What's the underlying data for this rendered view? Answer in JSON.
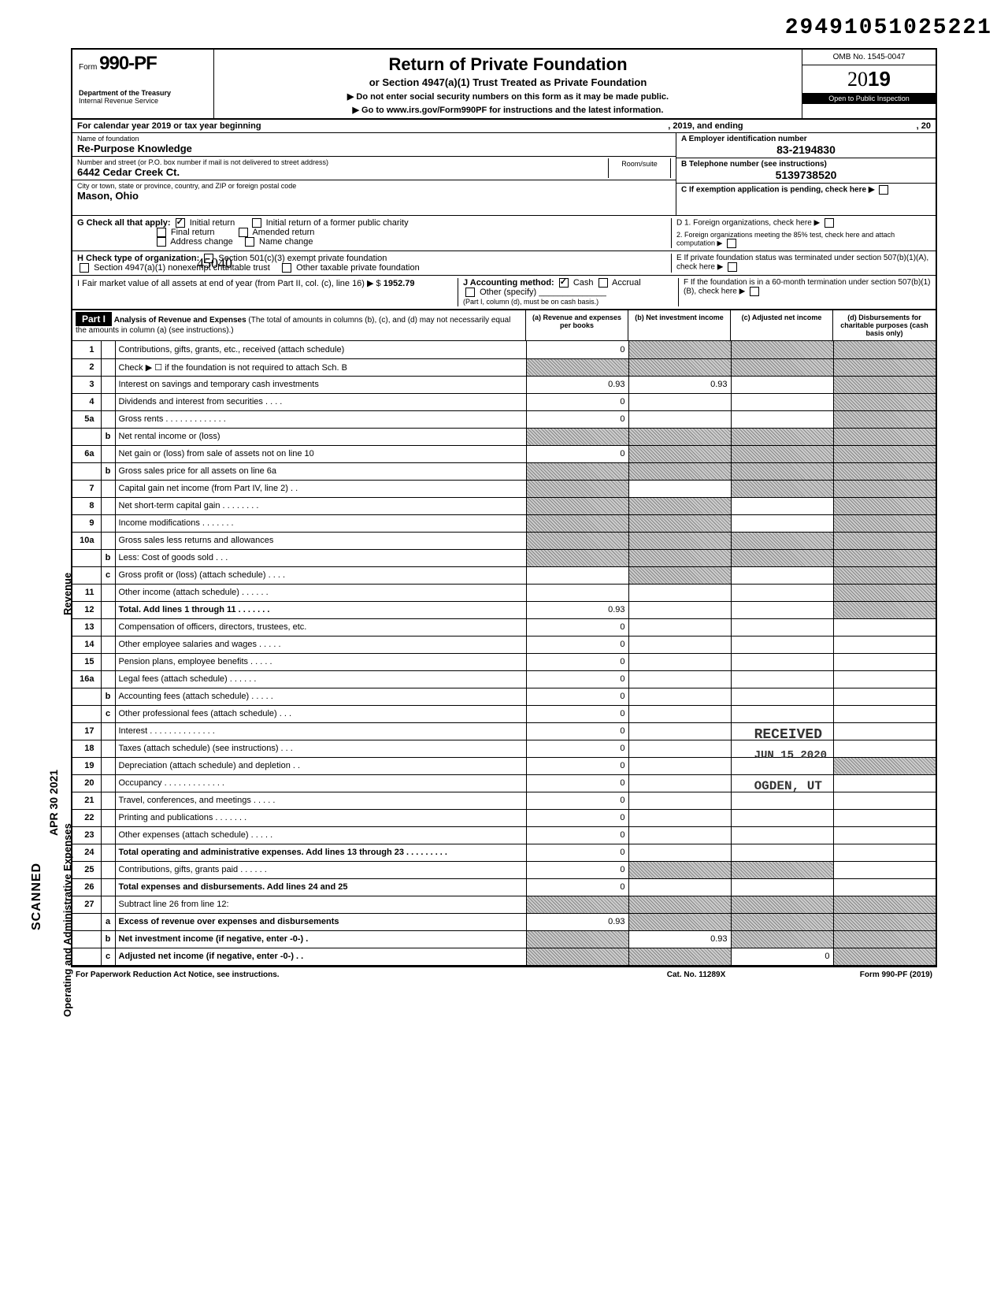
{
  "doc_number": "29491051025221",
  "form": {
    "prefix": "Form",
    "number": "990-PF",
    "dept": "Department of the Treasury",
    "irs": "Internal Revenue Service"
  },
  "title": {
    "main": "Return of Private Foundation",
    "sub": "or Section 4947(a)(1) Trust Treated as Private Foundation",
    "warn": "▶ Do not enter social security numbers on this form as it may be made public.",
    "goto": "▶ Go to www.irs.gov/Form990PF for instructions and the latest information."
  },
  "omb": {
    "label": "OMB No. 1545-0047",
    "year_prefix": "20",
    "year_suffix": "19",
    "open": "Open to Public Inspection"
  },
  "cal_year": {
    "prefix": "For calendar year 2019 or tax year beginning",
    "mid": ", 2019, and ending",
    "suffix": ", 20"
  },
  "foundation": {
    "name_label": "Name of foundation",
    "name": "Re-Purpose Knowledge",
    "addr_label": "Number and street (or P.O. box number if mail is not delivered to street address)",
    "addr": "6442 Cedar Creek Ct.",
    "city_label": "City or town, state or province, country, and ZIP or foreign postal code",
    "city": "Mason, Ohio",
    "handwritten_zip": "45040",
    "room_label": "Room/suite"
  },
  "boxA": {
    "label": "A  Employer identification number",
    "value": "83-2194830"
  },
  "boxB": {
    "label": "B  Telephone number (see instructions)",
    "value": "5139738520"
  },
  "boxC": {
    "label": "C  If exemption application is pending, check here ▶"
  },
  "boxD": {
    "d1": "D  1. Foreign organizations, check here",
    "d2": "2. Foreign organizations meeting the 85% test, check here and attach computation"
  },
  "boxE": {
    "label": "E  If private foundation status was terminated under section 507(b)(1)(A), check here"
  },
  "boxF": {
    "label": "F  If the foundation is in a 60-month termination under section 507(b)(1)(B), check here"
  },
  "sectionG": {
    "label": "G  Check all that apply:",
    "opts": {
      "initial": "Initial return",
      "initial_former": "Initial return of a former public charity",
      "final": "Final return",
      "amended": "Amended return",
      "addr_change": "Address change",
      "name_change": "Name change"
    },
    "initial_checked": true
  },
  "sectionH": {
    "label": "H  Check type of organization:",
    "opt1": "Section 501(c)(3) exempt private foundation",
    "opt2": "Section 4947(a)(1) nonexempt charitable trust",
    "opt3": "Other taxable private foundation"
  },
  "sectionI": {
    "label": "I   Fair market value of all assets at end of year (from Part II, col. (c), line 16) ▶ $",
    "value": "1952.79",
    "j_label": "J  Accounting method:",
    "j_cash": "Cash",
    "j_accrual": "Accrual",
    "j_other": "Other (specify)",
    "j_note": "(Part I, column (d), must be on cash basis.)",
    "cash_checked": true
  },
  "part1": {
    "tag": "Part I",
    "title": "Analysis of Revenue and Expenses",
    "note": "(The total of amounts in columns (b), (c), and (d) may not necessarily equal the amounts in column (a) (see instructions).)",
    "col_a": "(a) Revenue and expenses per books",
    "col_b": "(b) Net investment income",
    "col_c": "(c) Adjusted net income",
    "col_d": "(d) Disbursements for charitable purposes (cash basis only)"
  },
  "side": {
    "revenue": "Revenue",
    "ops": "Operating and Administrative Expenses",
    "scanned": "SCANNED",
    "date": "APR 30 2021"
  },
  "stamp": {
    "received": "RECEIVED",
    "date": "JUN 15 2020",
    "loc": "OGDEN, UT"
  },
  "lines": [
    {
      "n": "1",
      "sub": "",
      "desc": "Contributions, gifts, grants, etc., received (attach schedule)",
      "bold": false,
      "a": "0",
      "b": "shaded",
      "c": "shaded",
      "d": "shaded"
    },
    {
      "n": "2",
      "sub": "",
      "desc": "Check ▶ ☐ if the foundation is not required to attach Sch. B",
      "bold": false,
      "a": "shaded",
      "b": "shaded",
      "c": "shaded",
      "d": "shaded"
    },
    {
      "n": "3",
      "sub": "",
      "desc": "Interest on savings and temporary cash investments",
      "bold": false,
      "a": "0.93",
      "b": "0.93",
      "c": "",
      "d": "shaded"
    },
    {
      "n": "4",
      "sub": "",
      "desc": "Dividends and interest from securities . . . .",
      "bold": false,
      "a": "0",
      "b": "",
      "c": "",
      "d": "shaded"
    },
    {
      "n": "5a",
      "sub": "",
      "desc": "Gross rents . . . . . . . . . . . . .",
      "bold": false,
      "a": "0",
      "b": "",
      "c": "",
      "d": "shaded"
    },
    {
      "n": "",
      "sub": "b",
      "desc": "Net rental income or (loss)",
      "bold": false,
      "a": "shaded",
      "b": "shaded",
      "c": "shaded",
      "d": "shaded"
    },
    {
      "n": "6a",
      "sub": "",
      "desc": "Net gain or (loss) from sale of assets not on line 10",
      "bold": false,
      "a": "0",
      "b": "shaded",
      "c": "shaded",
      "d": "shaded"
    },
    {
      "n": "",
      "sub": "b",
      "desc": "Gross sales price for all assets on line 6a",
      "bold": false,
      "a": "shaded",
      "b": "shaded",
      "c": "shaded",
      "d": "shaded"
    },
    {
      "n": "7",
      "sub": "",
      "desc": "Capital gain net income (from Part IV, line 2) . .",
      "bold": false,
      "a": "shaded",
      "b": "",
      "c": "shaded",
      "d": "shaded"
    },
    {
      "n": "8",
      "sub": "",
      "desc": "Net short-term capital gain . . . . . . . .",
      "bold": false,
      "a": "shaded",
      "b": "shaded",
      "c": "",
      "d": "shaded"
    },
    {
      "n": "9",
      "sub": "",
      "desc": "Income modifications . . . . . . .",
      "bold": false,
      "a": "shaded",
      "b": "shaded",
      "c": "",
      "d": "shaded"
    },
    {
      "n": "10a",
      "sub": "",
      "desc": "Gross sales less returns and allowances",
      "bold": false,
      "a": "shaded",
      "b": "shaded",
      "c": "shaded",
      "d": "shaded"
    },
    {
      "n": "",
      "sub": "b",
      "desc": "Less: Cost of goods sold . . .",
      "bold": false,
      "a": "shaded",
      "b": "shaded",
      "c": "shaded",
      "d": "shaded"
    },
    {
      "n": "",
      "sub": "c",
      "desc": "Gross profit or (loss) (attach schedule) . . . .",
      "bold": false,
      "a": "",
      "b": "shaded",
      "c": "",
      "d": "shaded"
    },
    {
      "n": "11",
      "sub": "",
      "desc": "Other income (attach schedule) . . . . . .",
      "bold": false,
      "a": "",
      "b": "",
      "c": "",
      "d": "shaded"
    },
    {
      "n": "12",
      "sub": "",
      "desc": "Total. Add lines 1 through 11 . . . . . . .",
      "bold": true,
      "a": "0.93",
      "b": "",
      "c": "",
      "d": "shaded"
    },
    {
      "n": "13",
      "sub": "",
      "desc": "Compensation of officers, directors, trustees, etc.",
      "bold": false,
      "a": "0",
      "b": "",
      "c": "",
      "d": ""
    },
    {
      "n": "14",
      "sub": "",
      "desc": "Other employee salaries and wages . . . . .",
      "bold": false,
      "a": "0",
      "b": "",
      "c": "",
      "d": ""
    },
    {
      "n": "15",
      "sub": "",
      "desc": "Pension plans, employee benefits . . . . .",
      "bold": false,
      "a": "0",
      "b": "",
      "c": "",
      "d": ""
    },
    {
      "n": "16a",
      "sub": "",
      "desc": "Legal fees (attach schedule) . . . . . .",
      "bold": false,
      "a": "0",
      "b": "",
      "c": "",
      "d": ""
    },
    {
      "n": "",
      "sub": "b",
      "desc": "Accounting fees (attach schedule) . . . . .",
      "bold": false,
      "a": "0",
      "b": "",
      "c": "",
      "d": ""
    },
    {
      "n": "",
      "sub": "c",
      "desc": "Other professional fees (attach schedule) . . .",
      "bold": false,
      "a": "0",
      "b": "",
      "c": "",
      "d": ""
    },
    {
      "n": "17",
      "sub": "",
      "desc": "Interest . . . . . . . . . . . . . .",
      "bold": false,
      "a": "0",
      "b": "",
      "c": "",
      "d": ""
    },
    {
      "n": "18",
      "sub": "",
      "desc": "Taxes (attach schedule) (see instructions) . . .",
      "bold": false,
      "a": "0",
      "b": "",
      "c": "",
      "d": ""
    },
    {
      "n": "19",
      "sub": "",
      "desc": "Depreciation (attach schedule) and depletion . .",
      "bold": false,
      "a": "0",
      "b": "",
      "c": "",
      "d": "shaded"
    },
    {
      "n": "20",
      "sub": "",
      "desc": "Occupancy . . . . . . . . . . . . .",
      "bold": false,
      "a": "0",
      "b": "",
      "c": "",
      "d": ""
    },
    {
      "n": "21",
      "sub": "",
      "desc": "Travel, conferences, and meetings . . . . .",
      "bold": false,
      "a": "0",
      "b": "",
      "c": "",
      "d": ""
    },
    {
      "n": "22",
      "sub": "",
      "desc": "Printing and publications . . . . . . .",
      "bold": false,
      "a": "0",
      "b": "",
      "c": "",
      "d": ""
    },
    {
      "n": "23",
      "sub": "",
      "desc": "Other expenses (attach schedule) . . . . .",
      "bold": false,
      "a": "0",
      "b": "",
      "c": "",
      "d": ""
    },
    {
      "n": "24",
      "sub": "",
      "desc": "Total operating and administrative expenses. Add lines 13 through 23 . . . . . . . . .",
      "bold": true,
      "a": "0",
      "b": "",
      "c": "",
      "d": ""
    },
    {
      "n": "25",
      "sub": "",
      "desc": "Contributions, gifts, grants paid . . . . . .",
      "bold": false,
      "a": "0",
      "b": "shaded",
      "c": "shaded",
      "d": ""
    },
    {
      "n": "26",
      "sub": "",
      "desc": "Total expenses and disbursements. Add lines 24 and 25",
      "bold": true,
      "a": "0",
      "b": "",
      "c": "",
      "d": ""
    },
    {
      "n": "27",
      "sub": "",
      "desc": "Subtract line 26 from line 12:",
      "bold": false,
      "a": "shaded",
      "b": "shaded",
      "c": "shaded",
      "d": "shaded"
    },
    {
      "n": "",
      "sub": "a",
      "desc": "Excess of revenue over expenses and disbursements",
      "bold": true,
      "a": "0.93",
      "b": "shaded",
      "c": "shaded",
      "d": "shaded"
    },
    {
      "n": "",
      "sub": "b",
      "desc": "Net investment income (if negative, enter -0-) .",
      "bold": true,
      "a": "shaded",
      "b": "0.93",
      "c": "shaded",
      "d": "shaded"
    },
    {
      "n": "",
      "sub": "c",
      "desc": "Adjusted net income (if negative, enter -0-) . .",
      "bold": true,
      "a": "shaded",
      "b": "shaded",
      "c": "0",
      "d": "shaded"
    }
  ],
  "footer": {
    "left": "For Paperwork Reduction Act Notice, see instructions.",
    "mid": "Cat. No. 11289X",
    "right": "Form 990-PF (2019)"
  }
}
